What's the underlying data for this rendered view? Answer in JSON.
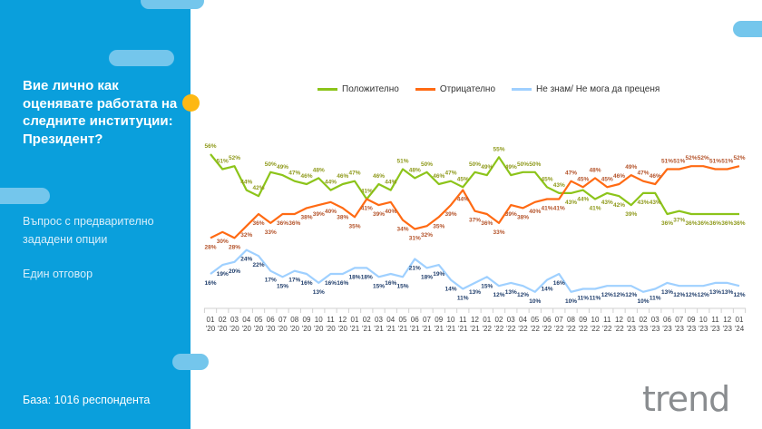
{
  "sidebar": {
    "question": "Вие лично как оценявате работата на следните институции: Президент?",
    "type_line1": "Въпрос с предварително",
    "type_line2": "зададени опции",
    "answer_type": "Един отговор",
    "base": "База:  1016 респондента"
  },
  "logo": {
    "text": "trend"
  },
  "colors": {
    "positive": "#8cc41a",
    "negative": "#ff6a13",
    "unknown": "#9fd0ff",
    "sidebar": "#0a9fdc",
    "accent": "#fdb813"
  },
  "chart_data": {
    "type": "line",
    "title": "Вие лично как оценявате работата на следните институции: Президент?",
    "categories": [
      [
        "01",
        "'20"
      ],
      [
        "02",
        "'20"
      ],
      [
        "03",
        "'20"
      ],
      [
        "04",
        "'20"
      ],
      [
        "05",
        "'20"
      ],
      [
        "06",
        "'20"
      ],
      [
        "07",
        "'20"
      ],
      [
        "08",
        "'20"
      ],
      [
        "09",
        "'20"
      ],
      [
        "10",
        "'20"
      ],
      [
        "11",
        "'20"
      ],
      [
        "12",
        "'20"
      ],
      [
        "01",
        "'21"
      ],
      [
        "02",
        "'21"
      ],
      [
        "03",
        "'21"
      ],
      [
        "04",
        "'21"
      ],
      [
        "05",
        "'21"
      ],
      [
        "06",
        "'21"
      ],
      [
        "07",
        "'21"
      ],
      [
        "09",
        "'21"
      ],
      [
        "10",
        "'21"
      ],
      [
        "11",
        "'21"
      ],
      [
        "12",
        "'21"
      ],
      [
        "01",
        "'22"
      ],
      [
        "02",
        "'22"
      ],
      [
        "03",
        "'22"
      ],
      [
        "04",
        "'22"
      ],
      [
        "05",
        "'22"
      ],
      [
        "06",
        "'22"
      ],
      [
        "07",
        "'22"
      ],
      [
        "08",
        "'22"
      ],
      [
        "09",
        "'22"
      ],
      [
        "10",
        "'22"
      ],
      [
        "11",
        "'22"
      ],
      [
        "12",
        "'22"
      ],
      [
        "01",
        "'23"
      ],
      [
        "02",
        "'23"
      ],
      [
        "03",
        "'23"
      ],
      [
        "06",
        "'23"
      ],
      [
        "07",
        "'23"
      ],
      [
        "09",
        "'23"
      ],
      [
        "10",
        "'23"
      ],
      [
        "11",
        "'23"
      ],
      [
        "12",
        "'23"
      ],
      [
        "01",
        "'24"
      ]
    ],
    "legend_position": "top",
    "ylim": [
      0,
      60
    ],
    "series": [
      {
        "name": "Положително",
        "color": "#8cc41a",
        "label_color": "#8f9a1c",
        "values": [
          56,
          51,
          52,
          44,
          42,
          50,
          49,
          47,
          46,
          48,
          44,
          46,
          47,
          41,
          46,
          44,
          51,
          48,
          50,
          46,
          47,
          45,
          50,
          49,
          55,
          49,
          50,
          50,
          45,
          43,
          43,
          44,
          41,
          43,
          42,
          39,
          43,
          43,
          36,
          37,
          36,
          36,
          36,
          36,
          36
        ]
      },
      {
        "name": "Отрицателно",
        "color": "#ff6a13",
        "label_color": "#b4532a",
        "values": [
          28,
          30,
          28,
          32,
          36,
          33,
          36,
          36,
          38,
          39,
          40,
          38,
          35,
          41,
          39,
          40,
          34,
          31,
          32,
          35,
          39,
          44,
          37,
          36,
          33,
          39,
          38,
          40,
          41,
          41,
          47,
          45,
          48,
          45,
          46,
          49,
          47,
          46,
          51,
          51,
          52,
          52,
          51,
          51,
          52
        ]
      },
      {
        "name": "Не знам/ Не мога да преценя",
        "color": "#9fd0ff",
        "label_color": "#1f3d6b",
        "values": [
          16,
          19,
          20,
          24,
          22,
          17,
          15,
          17,
          16,
          13,
          16,
          16,
          18,
          18,
          15,
          16,
          15,
          21,
          18,
          19,
          14,
          11,
          13,
          15,
          12,
          13,
          12,
          10,
          14,
          16,
          10,
          11,
          11,
          12,
          12,
          12,
          10,
          11,
          13,
          12,
          12,
          12,
          13,
          13,
          12
        ]
      }
    ]
  }
}
